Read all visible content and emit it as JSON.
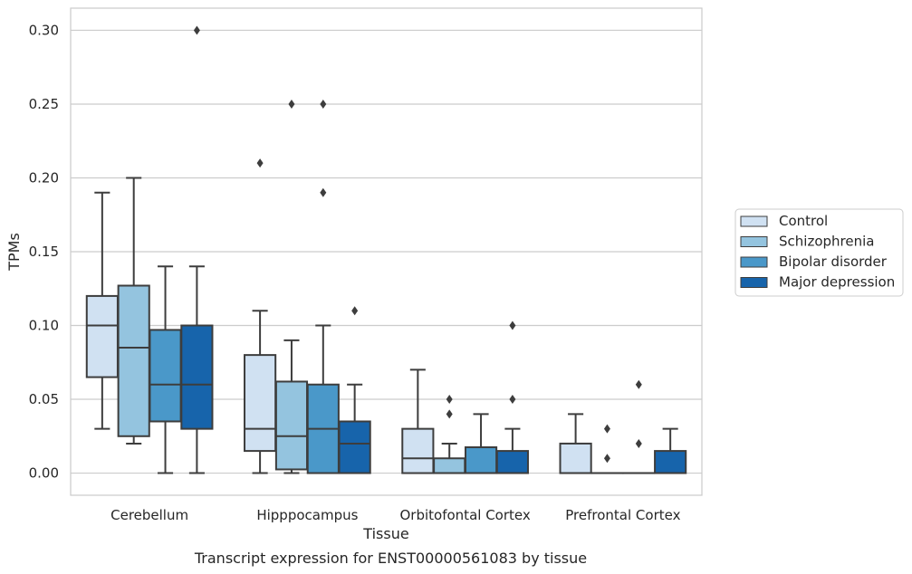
{
  "chart_data": {
    "type": "boxplot",
    "title": "Transcript expression for ENST00000561083 by tissue",
    "xlabel": "Tissue",
    "ylabel": "TPMs",
    "ylim": [
      -0.015,
      0.315
    ],
    "yticks": [
      "0.00",
      "0.05",
      "0.10",
      "0.15",
      "0.20",
      "0.25",
      "0.30"
    ],
    "ytick_values": [
      0.0,
      0.05,
      0.1,
      0.15,
      0.2,
      0.25,
      0.3
    ],
    "grid": "horizontal",
    "legend_position": "right",
    "categories": [
      "Cerebellum",
      "Hipppocampus",
      "Orbitofontal Cortex",
      "Prefrontal Cortex"
    ],
    "series": [
      {
        "name": "Control",
        "color": "#d0e1f2",
        "boxes": [
          {
            "whislo": 0.03,
            "q1": 0.065,
            "med": 0.1,
            "q3": 0.12,
            "whishi": 0.19,
            "fliers": []
          },
          {
            "whislo": 0.0,
            "q1": 0.015,
            "med": 0.03,
            "q3": 0.08,
            "whishi": 0.11,
            "fliers": [
              0.21
            ]
          },
          {
            "whislo": 0.0,
            "q1": 0.0,
            "med": 0.01,
            "q3": 0.03,
            "whishi": 0.07,
            "fliers": []
          },
          {
            "whislo": 0.0,
            "q1": 0.0,
            "med": 0.0,
            "q3": 0.02,
            "whishi": 0.04,
            "fliers": []
          }
        ]
      },
      {
        "name": "Schizophrenia",
        "color": "#94c4df",
        "boxes": [
          {
            "whislo": 0.02,
            "q1": 0.025,
            "med": 0.085,
            "q3": 0.127,
            "whishi": 0.2,
            "fliers": []
          },
          {
            "whislo": 0.0,
            "q1": 0.0025,
            "med": 0.025,
            "q3": 0.062,
            "whishi": 0.09,
            "fliers": [
              0.25
            ]
          },
          {
            "whislo": 0.0,
            "q1": 0.0,
            "med": 0.0,
            "q3": 0.01,
            "whishi": 0.02,
            "fliers": [
              0.04,
              0.05
            ]
          },
          {
            "whislo": 0.0,
            "q1": 0.0,
            "med": 0.0,
            "q3": 0.0,
            "whishi": 0.0,
            "fliers": [
              0.01,
              0.03
            ]
          }
        ]
      },
      {
        "name": "Bipolar disorder",
        "color": "#4a98c9",
        "boxes": [
          {
            "whislo": 0.0,
            "q1": 0.035,
            "med": 0.06,
            "q3": 0.097,
            "whishi": 0.14,
            "fliers": []
          },
          {
            "whislo": 0.0,
            "q1": 0.0,
            "med": 0.03,
            "q3": 0.06,
            "whishi": 0.1,
            "fliers": [
              0.19,
              0.25
            ]
          },
          {
            "whislo": 0.0,
            "q1": 0.0,
            "med": 0.0,
            "q3": 0.0175,
            "whishi": 0.04,
            "fliers": []
          },
          {
            "whislo": 0.0,
            "q1": 0.0,
            "med": 0.0,
            "q3": 0.0,
            "whishi": 0.0,
            "fliers": [
              0.02,
              0.06
            ]
          }
        ]
      },
      {
        "name": "Major depression",
        "color": "#1764ab",
        "boxes": [
          {
            "whislo": 0.0,
            "q1": 0.03,
            "med": 0.06,
            "q3": 0.1,
            "whishi": 0.14,
            "fliers": [
              0.3
            ]
          },
          {
            "whislo": 0.0,
            "q1": 0.0,
            "med": 0.02,
            "q3": 0.035,
            "whishi": 0.06,
            "fliers": [
              0.11
            ]
          },
          {
            "whislo": 0.0,
            "q1": 0.0,
            "med": 0.0,
            "q3": 0.015,
            "whishi": 0.03,
            "fliers": [
              0.05,
              0.1
            ]
          },
          {
            "whislo": 0.0,
            "q1": 0.0,
            "med": 0.0,
            "q3": 0.015,
            "whishi": 0.03,
            "fliers": []
          }
        ]
      }
    ]
  }
}
